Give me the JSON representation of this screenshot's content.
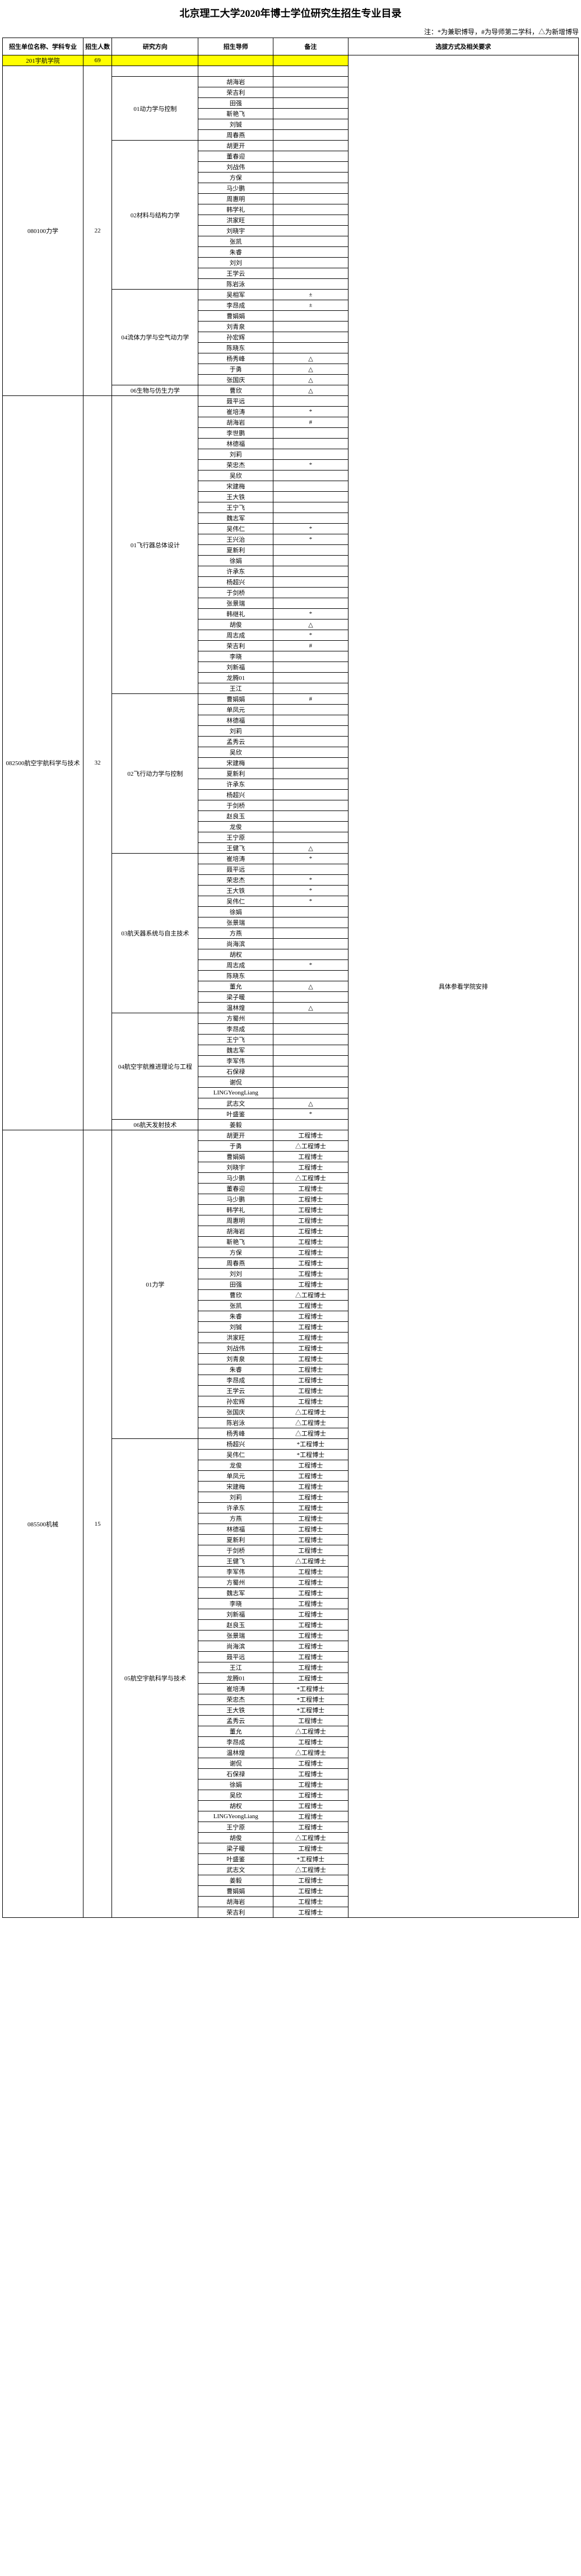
{
  "title": "北京理工大学2020年博士学位研究生招生专业目录",
  "legend": "注：*为兼职博导，#为导师第二学科，△为新增博导",
  "headers": {
    "unit": "招生单位名称、学科专业",
    "num": "招生人数",
    "dir": "研究方向",
    "sup": "招生导师",
    "note": "备注",
    "req": "选拔方式及相关要求"
  },
  "college_row": {
    "unit": "201宇航学院",
    "num": "69"
  },
  "req_text": "具体参看学院安排",
  "majors": [
    {
      "unit": "080100力学",
      "num": "22",
      "directions": [
        {
          "name": "",
          "rows": [
            {
              "sup": "",
              "note": ""
            }
          ]
        },
        {
          "name": "01动力学与控制",
          "rows": [
            {
              "sup": "胡海岩",
              "note": ""
            },
            {
              "sup": "荣吉利",
              "note": ""
            },
            {
              "sup": "田强",
              "note": ""
            },
            {
              "sup": "靳艳飞",
              "note": ""
            },
            {
              "sup": "刘铖",
              "note": ""
            },
            {
              "sup": "周春燕",
              "note": ""
            }
          ]
        },
        {
          "name": "02材料与结构力学",
          "rows": [
            {
              "sup": "胡更开",
              "note": ""
            },
            {
              "sup": "董春迎",
              "note": ""
            },
            {
              "sup": "刘战伟",
              "note": ""
            },
            {
              "sup": "方保",
              "note": ""
            },
            {
              "sup": "马少鹏",
              "note": ""
            },
            {
              "sup": "周惠明",
              "note": ""
            },
            {
              "sup": "韩学礼",
              "note": ""
            },
            {
              "sup": "洪家旺",
              "note": ""
            },
            {
              "sup": "刘晓宇",
              "note": ""
            },
            {
              "sup": "张凯",
              "note": ""
            },
            {
              "sup": "朱睿",
              "note": ""
            },
            {
              "sup": "刘刘",
              "note": ""
            },
            {
              "sup": "王学云",
              "note": ""
            },
            {
              "sup": "陈岩泳",
              "note": ""
            }
          ]
        },
        {
          "name": "04流体力学与空气动力学",
          "rows": [
            {
              "sup": "吴相军",
              "note": "±"
            },
            {
              "sup": "李昂成",
              "note": "±"
            },
            {
              "sup": "曹娟娟",
              "note": ""
            },
            {
              "sup": "刘青泉",
              "note": ""
            },
            {
              "sup": "孙宏辉",
              "note": ""
            },
            {
              "sup": "陈晓东",
              "note": ""
            },
            {
              "sup": "杨秀峰",
              "note": "△"
            },
            {
              "sup": "于勇",
              "note": "△"
            },
            {
              "sup": "张国庆",
              "note": "△"
            }
          ]
        },
        {
          "name": "06生物与仿生力学",
          "rows": [
            {
              "sup": "曹欣",
              "note": "△"
            }
          ]
        }
      ]
    },
    {
      "unit": "082500航空宇航科学与技术",
      "num": "32",
      "directions": [
        {
          "name": "01飞行器总体设计",
          "rows": [
            {
              "sup": "聂平远",
              "note": ""
            },
            {
              "sup": "崔培涛",
              "note": "*"
            },
            {
              "sup": "胡海岩",
              "note": "#"
            },
            {
              "sup": "李世鹏",
              "note": ""
            },
            {
              "sup": "林德福",
              "note": ""
            },
            {
              "sup": "刘莉",
              "note": ""
            },
            {
              "sup": "荣忠杰",
              "note": "*"
            },
            {
              "sup": "吴欣",
              "note": ""
            },
            {
              "sup": "宋建梅",
              "note": ""
            },
            {
              "sup": "王大铁",
              "note": ""
            },
            {
              "sup": "王宁飞",
              "note": ""
            },
            {
              "sup": "魏志军",
              "note": ""
            },
            {
              "sup": "吴伟仁",
              "note": "*"
            },
            {
              "sup": "王兴治",
              "note": "*"
            },
            {
              "sup": "夏新利",
              "note": ""
            },
            {
              "sup": "徐娟",
              "note": ""
            },
            {
              "sup": "许承东",
              "note": ""
            },
            {
              "sup": "杨超兴",
              "note": ""
            },
            {
              "sup": "于剑桥",
              "note": ""
            },
            {
              "sup": "张景瑞",
              "note": ""
            },
            {
              "sup": "韩继礼",
              "note": "*"
            },
            {
              "sup": "胡俊",
              "note": "△"
            },
            {
              "sup": "周志成",
              "note": "*"
            },
            {
              "sup": "荣吉利",
              "note": "#"
            },
            {
              "sup": "李晓",
              "note": ""
            },
            {
              "sup": "刘新福",
              "note": ""
            },
            {
              "sup": "龙腾01",
              "note": ""
            },
            {
              "sup": "王江",
              "note": ""
            }
          ]
        },
        {
          "name": "02飞行动力学与控制",
          "rows": [
            {
              "sup": "曹娟娟",
              "note": "#"
            },
            {
              "sup": "单凤元",
              "note": ""
            },
            {
              "sup": "林德福",
              "note": ""
            },
            {
              "sup": "刘莉",
              "note": ""
            },
            {
              "sup": "孟秀云",
              "note": ""
            },
            {
              "sup": "吴欣",
              "note": ""
            },
            {
              "sup": "宋建梅",
              "note": ""
            },
            {
              "sup": "夏新利",
              "note": ""
            },
            {
              "sup": "许承东",
              "note": ""
            },
            {
              "sup": "杨超兴",
              "note": ""
            },
            {
              "sup": "于剑桥",
              "note": ""
            },
            {
              "sup": "赵良玉",
              "note": ""
            },
            {
              "sup": "龙俊",
              "note": ""
            },
            {
              "sup": "王宁原",
              "note": ""
            },
            {
              "sup": "王健飞",
              "note": "△"
            }
          ]
        },
        {
          "name": "03航天器系统与自主技术",
          "rows": [
            {
              "sup": "崔培涛",
              "note": "*"
            },
            {
              "sup": "聂平远",
              "note": ""
            },
            {
              "sup": "荣忠杰",
              "note": "*"
            },
            {
              "sup": "王大铁",
              "note": "*"
            },
            {
              "sup": "吴伟仁",
              "note": "*"
            },
            {
              "sup": "徐娟",
              "note": ""
            },
            {
              "sup": "张景瑞",
              "note": ""
            },
            {
              "sup": "方燕",
              "note": ""
            },
            {
              "sup": "尚海滨",
              "note": ""
            },
            {
              "sup": "胡权",
              "note": ""
            },
            {
              "sup": "周志成",
              "note": "*"
            },
            {
              "sup": "陈晓东",
              "note": ""
            },
            {
              "sup": "董允",
              "note": "△"
            },
            {
              "sup": "梁子暖",
              "note": ""
            },
            {
              "sup": "温林煌",
              "note": "△"
            }
          ]
        },
        {
          "name": "04航空宇航推进理论与工程",
          "rows": [
            {
              "sup": "方蜀州",
              "note": ""
            },
            {
              "sup": "李昂成",
              "note": ""
            },
            {
              "sup": "王宁飞",
              "note": ""
            },
            {
              "sup": "魏志军",
              "note": ""
            },
            {
              "sup": "李军伟",
              "note": ""
            },
            {
              "sup": "石保禄",
              "note": ""
            },
            {
              "sup": "谢侃",
              "note": ""
            },
            {
              "sup": "LINGYeongLiang",
              "note": ""
            },
            {
              "sup": "武志文",
              "note": "△"
            },
            {
              "sup": "叶盛鉴",
              "note": "*"
            }
          ]
        },
        {
          "name": "06航天发射技术",
          "rows": [
            {
              "sup": "姜毅",
              "note": ""
            }
          ]
        }
      ]
    },
    {
      "unit": "085500机械",
      "num": "15",
      "directions": [
        {
          "name": "01力学",
          "rows": [
            {
              "sup": "胡更开",
              "note": "工程博士"
            },
            {
              "sup": "于勇",
              "note": "△工程博士"
            },
            {
              "sup": "曹娟娟",
              "note": "工程博士"
            },
            {
              "sup": "刘晓宇",
              "note": "工程博士"
            },
            {
              "sup": "马少鹏",
              "note": "△工程博士"
            },
            {
              "sup": "董春迎",
              "note": "工程博士"
            },
            {
              "sup": "马少鹏",
              "note": "工程博士"
            },
            {
              "sup": "韩学礼",
              "note": "工程博士"
            },
            {
              "sup": "周惠明",
              "note": "工程博士"
            },
            {
              "sup": "胡海岩",
              "note": "工程博士"
            },
            {
              "sup": "靳艳飞",
              "note": "工程博士"
            },
            {
              "sup": "方保",
              "note": "工程博士"
            },
            {
              "sup": "周春燕",
              "note": "工程博士"
            },
            {
              "sup": "刘刘",
              "note": "工程博士"
            },
            {
              "sup": "田强",
              "note": "工程博士"
            },
            {
              "sup": "曹欣",
              "note": "△工程博士"
            },
            {
              "sup": "张凯",
              "note": "工程博士"
            },
            {
              "sup": "朱睿",
              "note": "工程博士"
            },
            {
              "sup": "刘铖",
              "note": "工程博士"
            },
            {
              "sup": "洪家旺",
              "note": "工程博士"
            },
            {
              "sup": "刘战伟",
              "note": "工程博士"
            },
            {
              "sup": "刘青泉",
              "note": "工程博士"
            },
            {
              "sup": "朱睿",
              "note": "工程博士"
            },
            {
              "sup": "李昂成",
              "note": "工程博士"
            },
            {
              "sup": "王学云",
              "note": "工程博士"
            },
            {
              "sup": "孙宏辉",
              "note": "工程博士"
            },
            {
              "sup": "张国庆",
              "note": "△工程博士"
            },
            {
              "sup": "陈岩泳",
              "note": "△工程博士"
            },
            {
              "sup": "杨秀峰",
              "note": "△工程博士"
            }
          ]
        },
        {
          "name": "05航空宇航科学与技术",
          "rows": [
            {
              "sup": "杨超兴",
              "note": "*工程博士"
            },
            {
              "sup": "吴伟仁",
              "note": "*工程博士"
            },
            {
              "sup": "龙俊",
              "note": "工程博士"
            },
            {
              "sup": "单凤元",
              "note": "工程博士"
            },
            {
              "sup": "宋建梅",
              "note": "工程博士"
            },
            {
              "sup": "刘莉",
              "note": "工程博士"
            },
            {
              "sup": "许承东",
              "note": "工程博士"
            },
            {
              "sup": "方燕",
              "note": "工程博士"
            },
            {
              "sup": "林德福",
              "note": "工程博士"
            },
            {
              "sup": "夏新利",
              "note": "工程博士"
            },
            {
              "sup": "于剑桥",
              "note": "工程博士"
            },
            {
              "sup": "王健飞",
              "note": "△工程博士"
            },
            {
              "sup": "李军伟",
              "note": "工程博士"
            },
            {
              "sup": "方蜀州",
              "note": "工程博士"
            },
            {
              "sup": "魏志军",
              "note": "工程博士"
            },
            {
              "sup": "李晓",
              "note": "工程博士"
            },
            {
              "sup": "刘新福",
              "note": "工程博士"
            },
            {
              "sup": "赵良玉",
              "note": "工程博士"
            },
            {
              "sup": "张景瑞",
              "note": "工程博士"
            },
            {
              "sup": "尚海滨",
              "note": "工程博士"
            },
            {
              "sup": "聂平远",
              "note": "工程博士"
            },
            {
              "sup": "王江",
              "note": "工程博士"
            },
            {
              "sup": "龙腾01",
              "note": "工程博士"
            },
            {
              "sup": "崔培涛",
              "note": "*工程博士"
            },
            {
              "sup": "荣忠杰",
              "note": "*工程博士"
            },
            {
              "sup": "王大铁",
              "note": "*工程博士"
            },
            {
              "sup": "孟秀云",
              "note": "工程博士"
            },
            {
              "sup": "董允",
              "note": "△工程博士"
            },
            {
              "sup": "李昂成",
              "note": "工程博士"
            },
            {
              "sup": "温林煌",
              "note": "△工程博士"
            },
            {
              "sup": "谢侃",
              "note": "工程博士"
            },
            {
              "sup": "石保禄",
              "note": "工程博士"
            },
            {
              "sup": "徐娟",
              "note": "工程博士"
            },
            {
              "sup": "吴欣",
              "note": "工程博士"
            },
            {
              "sup": "胡权",
              "note": "工程博士"
            },
            {
              "sup": "LINGYeongLiang",
              "note": "工程博士"
            },
            {
              "sup": "王宁原",
              "note": "工程博士"
            },
            {
              "sup": "胡俊",
              "note": "△工程博士"
            },
            {
              "sup": "梁子暖",
              "note": "工程博士"
            },
            {
              "sup": "叶盛鉴",
              "note": "*工程博士"
            },
            {
              "sup": "武志文",
              "note": "△工程博士"
            },
            {
              "sup": "姜毅",
              "note": "工程博士"
            },
            {
              "sup": "曹娟娟",
              "note": "工程博士"
            },
            {
              "sup": "胡海岩",
              "note": "工程博士"
            },
            {
              "sup": "荣吉利",
              "note": "工程博士"
            }
          ]
        }
      ]
    }
  ]
}
